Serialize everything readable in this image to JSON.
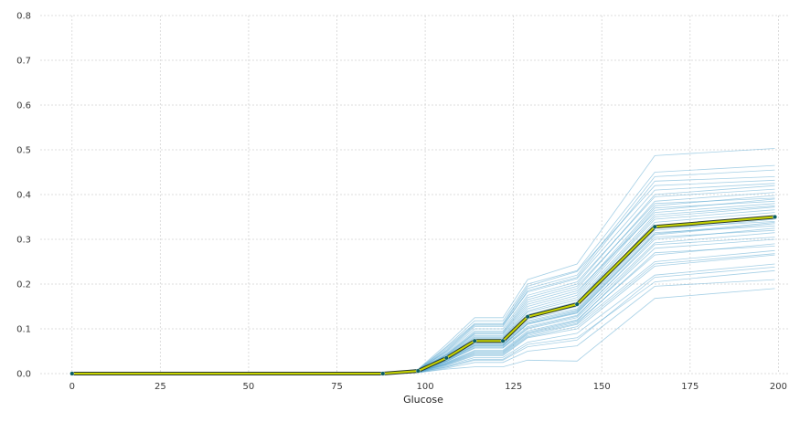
{
  "chart_data": {
    "type": "line",
    "xlabel": "Glucose",
    "ylabel": "",
    "xlim": [
      -9,
      203
    ],
    "ylim": [
      0,
      0.8
    ],
    "x_ticks": [
      0,
      25,
      50,
      75,
      100,
      125,
      150,
      175,
      200
    ],
    "y_ticks": [
      0.0,
      0.1,
      0.2,
      0.3,
      0.4,
      0.5,
      0.6,
      0.7,
      0.8
    ],
    "x_tick_labels": [
      "0",
      "25",
      "50",
      "75",
      "100",
      "125",
      "150",
      "175",
      "200"
    ],
    "y_tick_labels": [
      "0.0",
      "0.1",
      "0.2",
      "0.3",
      "0.4",
      "0.5",
      "0.6",
      "0.7",
      "0.8"
    ],
    "grid": true,
    "legend": "none",
    "x": [
      0,
      88,
      98,
      106,
      114,
      122,
      129,
      143,
      165,
      199
    ],
    "average_line": {
      "values": [
        0,
        0,
        0.006,
        0.035,
        0.073,
        0.073,
        0.127,
        0.155,
        0.328,
        0.35
      ],
      "line_color": "#c8d400",
      "marker_color": "#0b5f63",
      "outline_color": "#2a3a30"
    },
    "individual_lines": {
      "color": "#3a96c8",
      "values": [
        [
          0,
          0,
          0.006,
          0.035,
          0.073,
          0.073,
          0.127,
          0.155,
          0.328,
          0.35
        ],
        [
          0,
          0,
          0.009,
          0.06,
          0.118,
          0.118,
          0.2,
          0.23,
          0.45,
          0.465
        ],
        [
          0,
          0,
          0.008,
          0.055,
          0.11,
          0.11,
          0.19,
          0.22,
          0.44,
          0.455
        ],
        [
          0,
          0,
          0.008,
          0.05,
          0.105,
          0.105,
          0.185,
          0.215,
          0.43,
          0.44
        ],
        [
          0,
          0,
          0.01,
          0.065,
          0.125,
          0.125,
          0.21,
          0.245,
          0.487,
          0.503
        ],
        [
          0,
          0,
          0.007,
          0.045,
          0.095,
          0.095,
          0.17,
          0.2,
          0.4,
          0.42
        ],
        [
          0,
          0,
          0.007,
          0.042,
          0.09,
          0.09,
          0.16,
          0.19,
          0.385,
          0.405
        ],
        [
          0,
          0,
          0.007,
          0.04,
          0.085,
          0.085,
          0.15,
          0.18,
          0.375,
          0.398
        ],
        [
          0,
          0,
          0.006,
          0.038,
          0.08,
          0.08,
          0.14,
          0.17,
          0.365,
          0.39
        ],
        [
          0,
          0,
          0.006,
          0.036,
          0.076,
          0.076,
          0.132,
          0.16,
          0.35,
          0.372
        ],
        [
          0,
          0,
          0.006,
          0.034,
          0.072,
          0.072,
          0.125,
          0.15,
          0.338,
          0.36
        ],
        [
          0,
          0,
          0.006,
          0.033,
          0.07,
          0.07,
          0.122,
          0.145,
          0.33,
          0.352
        ],
        [
          0,
          0,
          0.005,
          0.031,
          0.066,
          0.066,
          0.115,
          0.14,
          0.32,
          0.345
        ],
        [
          0,
          0,
          0.005,
          0.03,
          0.063,
          0.063,
          0.11,
          0.135,
          0.31,
          0.335
        ],
        [
          0,
          0,
          0.005,
          0.028,
          0.06,
          0.06,
          0.105,
          0.13,
          0.3,
          0.325
        ],
        [
          0,
          0,
          0.005,
          0.027,
          0.057,
          0.057,
          0.1,
          0.125,
          0.292,
          0.315
        ],
        [
          0,
          0,
          0.004,
          0.025,
          0.052,
          0.052,
          0.095,
          0.12,
          0.28,
          0.3
        ],
        [
          0,
          0,
          0.004,
          0.023,
          0.048,
          0.048,
          0.09,
          0.115,
          0.265,
          0.29
        ],
        [
          0,
          0,
          0.004,
          0.021,
          0.044,
          0.044,
          0.085,
          0.11,
          0.25,
          0.275
        ],
        [
          0,
          0,
          0.003,
          0.019,
          0.04,
          0.04,
          0.08,
          0.1,
          0.24,
          0.265
        ],
        [
          0,
          0,
          0.003,
          0.017,
          0.036,
          0.036,
          0.07,
          0.09,
          0.22,
          0.245
        ],
        [
          0,
          0,
          0.003,
          0.015,
          0.032,
          0.032,
          0.065,
          0.08,
          0.205,
          0.23
        ],
        [
          0,
          0,
          0.002,
          0.012,
          0.025,
          0.025,
          0.05,
          0.062,
          0.195,
          0.21
        ],
        [
          0,
          0,
          0.002,
          0.01,
          0.015,
          0.015,
          0.03,
          0.028,
          0.168,
          0.19
        ],
        [
          0,
          0,
          0.008,
          0.048,
          0.1,
          0.1,
          0.175,
          0.205,
          0.395,
          0.412
        ],
        [
          0,
          0,
          0.007,
          0.043,
          0.092,
          0.092,
          0.165,
          0.195,
          0.38,
          0.392
        ],
        [
          0,
          0,
          0.006,
          0.039,
          0.082,
          0.082,
          0.145,
          0.175,
          0.37,
          0.385
        ],
        [
          0,
          0,
          0.006,
          0.037,
          0.078,
          0.078,
          0.137,
          0.165,
          0.355,
          0.375
        ],
        [
          0,
          0,
          0.006,
          0.035,
          0.074,
          0.074,
          0.13,
          0.158,
          0.345,
          0.366
        ],
        [
          0,
          0,
          0.005,
          0.032,
          0.068,
          0.068,
          0.118,
          0.142,
          0.325,
          0.34
        ],
        [
          0,
          0,
          0.005,
          0.029,
          0.062,
          0.062,
          0.112,
          0.138,
          0.315,
          0.33
        ],
        [
          0,
          0,
          0.005,
          0.027,
          0.058,
          0.058,
          0.102,
          0.128,
          0.305,
          0.32
        ],
        [
          0,
          0,
          0.004,
          0.024,
          0.05,
          0.05,
          0.092,
          0.118,
          0.288,
          0.305
        ],
        [
          0,
          0,
          0.004,
          0.022,
          0.046,
          0.046,
          0.088,
          0.112,
          0.27,
          0.285
        ],
        [
          0,
          0,
          0.009,
          0.058,
          0.112,
          0.112,
          0.195,
          0.228,
          0.42,
          0.432
        ],
        [
          0,
          0,
          0.008,
          0.052,
          0.108,
          0.108,
          0.182,
          0.212,
          0.41,
          0.425
        ],
        [
          0,
          0,
          0.007,
          0.041,
          0.088,
          0.088,
          0.155,
          0.185,
          0.36,
          0.38
        ],
        [
          0,
          0,
          0.005,
          0.03,
          0.064,
          0.064,
          0.112,
          0.136,
          0.312,
          0.338
        ],
        [
          0,
          0,
          0.004,
          0.02,
          0.042,
          0.042,
          0.082,
          0.105,
          0.245,
          0.268
        ],
        [
          0,
          0,
          0.003,
          0.014,
          0.03,
          0.03,
          0.06,
          0.075,
          0.215,
          0.238
        ]
      ]
    }
  }
}
